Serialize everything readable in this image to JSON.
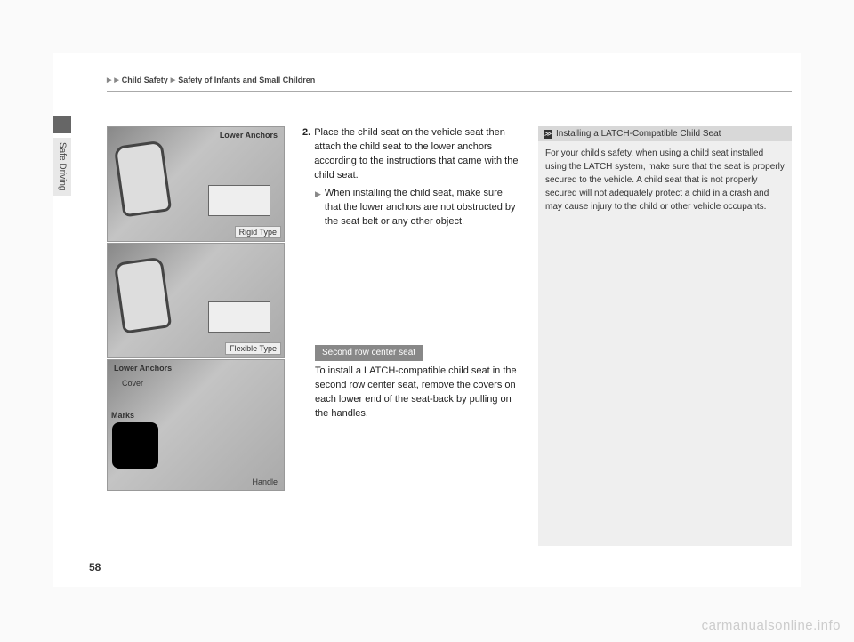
{
  "breadcrumb": {
    "l1": "Child Safety",
    "l2": "Safety of Infants and Small Children"
  },
  "side_tab": "Safe Driving",
  "page_number": "58",
  "watermark": "carmanualsonline.info",
  "images": {
    "img1": {
      "top_label": "Lower Anchors",
      "bottom_label": "Rigid Type"
    },
    "img2": {
      "bottom_label": "Flexible Type"
    },
    "img3": {
      "lower_anchors": "Lower Anchors",
      "cover": "Cover",
      "marks": "Marks",
      "handle": "Handle"
    }
  },
  "center": {
    "step_num": "2.",
    "step_text": "Place the child seat on the vehicle seat then attach the child seat to the lower anchors according to the instructions that came with the child seat.",
    "sub_text": "When installing the child seat, make sure that the lower anchors are not obstructed by the seat belt or any other object.",
    "section_tag": "Second row center seat",
    "section_body": "To install a LATCH-compatible child seat in the second row center seat, remove the covers on each lower end of the seat-back by pulling on the handles."
  },
  "right": {
    "header_icon": "≫",
    "header": "Installing a LATCH-Compatible Child Seat",
    "body": "For your child's safety, when using a child seat installed using the LATCH system, make sure that the seat is properly secured to the vehicle. A child seat that is not properly secured will not adequately protect a child in a crash and may cause injury to the child or other vehicle occupants."
  }
}
